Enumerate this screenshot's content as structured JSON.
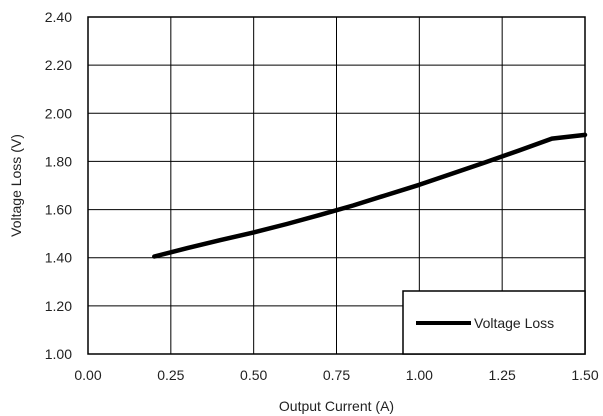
{
  "chart_data": {
    "type": "line",
    "title": "",
    "xlabel": "Output Current (A)",
    "ylabel": "Voltage Loss (V)",
    "xlim": [
      0,
      1.5
    ],
    "ylim": [
      1.0,
      2.4
    ],
    "x_ticks": [
      0,
      0.25,
      0.5,
      0.75,
      1.0,
      1.25,
      1.5
    ],
    "x_tick_labels": [
      "0.00",
      "0.25",
      "0.50",
      "0.75",
      "1.00",
      "1.25",
      "1.50"
    ],
    "y_ticks": [
      1.0,
      1.2,
      1.4,
      1.6,
      1.8,
      2.0,
      2.2,
      2.4
    ],
    "y_tick_labels": [
      "1.00",
      "1.20",
      "1.40",
      "1.60",
      "1.80",
      "2.00",
      "2.20",
      "2.40"
    ],
    "grid": true,
    "legend_position": "bottom-right",
    "series": [
      {
        "name": "Voltage Loss",
        "color": "#000000",
        "x": [
          0.2,
          0.3,
          0.4,
          0.5,
          0.6,
          0.7,
          0.8,
          0.9,
          1.0,
          1.1,
          1.2,
          1.3,
          1.4,
          1.5
        ],
        "y": [
          1.405,
          1.44,
          1.473,
          1.505,
          1.54,
          1.578,
          1.617,
          1.66,
          1.703,
          1.75,
          1.797,
          1.845,
          1.895,
          1.91
        ]
      }
    ]
  }
}
